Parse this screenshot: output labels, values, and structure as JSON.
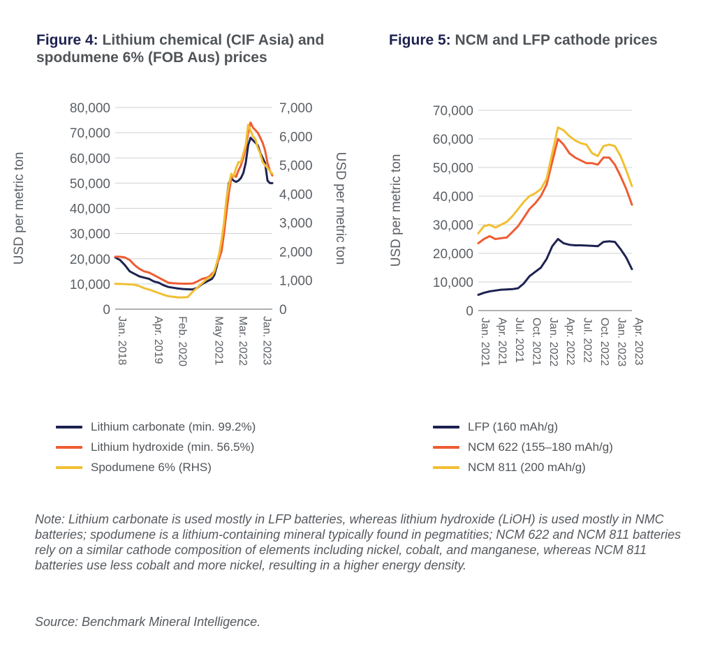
{
  "figure4": {
    "title_num": "Figure 4:",
    "title_text": "Lithium chemical (CIF Asia) and spodumene 6% (FOB Aus) prices"
  },
  "figure5": {
    "title_num": "Figure 5:",
    "title_text": "NCM and LFP cathode prices"
  },
  "note": "Note: Lithium carbonate is used mostly in LFP batteries, whereas lithium hydroxide (LiOH) is used mostly in NMC batteries; spodumene is a lithium-containing mineral typically found in pegmatities; NCM 622 and NCM 811 batteries rely on a similar cathode composition of elements including nickel, cobalt, and manganese, whereas NCM 811 batteries use less cobalt and more nickel, resulting in a higher energy density.",
  "source": "Source: Benchmark Mineral Intelligence.",
  "chart_data": [
    {
      "type": "line",
      "title": "Lithium chemical (CIF Asia) and spodumene 6% (FOB Aus) prices",
      "ylabel": "USD per metric ton",
      "y2label": "USD per metric ton",
      "ylim": [
        0,
        80000
      ],
      "y2lim": [
        0,
        7000
      ],
      "yticks": [
        0,
        10000,
        20000,
        30000,
        40000,
        50000,
        60000,
        70000,
        80000
      ],
      "y2ticks": [
        0,
        1000,
        2000,
        3000,
        4000,
        5000,
        6000,
        7000
      ],
      "ytick_labels": [
        "0",
        "10,000",
        "20,000",
        "30,000",
        "40,000",
        "50,000",
        "60,000",
        "70,000",
        "80,000"
      ],
      "y2tick_labels": [
        "0",
        "1,000",
        "2,000",
        "3,000",
        "4,000",
        "5,000",
        "6,000",
        "7,000"
      ],
      "xlim": [
        0,
        65
      ],
      "x_ticks": [
        0,
        15,
        25,
        40,
        50,
        60
      ],
      "x_tick_labels": [
        "Jan. 2018",
        "Apr. 2019",
        "Feb. 2020",
        "May 2021",
        "Mar. 2022",
        "Jan. 2023"
      ],
      "grid": true,
      "legend": "bottom",
      "series": [
        {
          "name": "Lithium carbonate (min. 99.2%)",
          "color": "#1d2250",
          "axis": "left",
          "x": [
            0,
            2,
            4,
            6,
            8,
            10,
            12,
            14,
            16,
            18,
            20,
            22,
            24,
            26,
            28,
            30,
            32,
            34,
            36,
            38,
            39,
            40,
            41,
            42,
            43,
            44,
            45,
            46,
            47,
            48,
            49,
            50,
            51,
            52,
            53,
            54,
            55,
            56,
            57,
            58,
            59,
            60,
            61,
            62,
            63,
            64,
            65
          ],
          "y": [
            20500,
            19500,
            17500,
            15000,
            14000,
            13000,
            12500,
            12000,
            11000,
            10500,
            9500,
            8800,
            8500,
            8200,
            8000,
            7900,
            7800,
            8500,
            10000,
            11000,
            11500,
            12000,
            13500,
            17000,
            21000,
            25000,
            33000,
            43000,
            50000,
            52000,
            51000,
            50500,
            51000,
            52000,
            54000,
            58000,
            65000,
            68000,
            67000,
            66000,
            65000,
            62000,
            60000,
            58000,
            51000,
            50000,
            50000
          ]
        },
        {
          "name": "Lithium hydroxide (min. 56.5%)",
          "color": "#ef5c33",
          "axis": "left",
          "x": [
            0,
            2,
            4,
            6,
            8,
            10,
            12,
            14,
            16,
            18,
            20,
            22,
            24,
            26,
            28,
            30,
            32,
            34,
            36,
            38,
            39,
            40,
            41,
            42,
            43,
            44,
            45,
            46,
            47,
            48,
            49,
            50,
            51,
            52,
            53,
            54,
            55,
            56,
            57,
            58,
            59,
            60,
            61,
            62,
            63,
            64,
            65
          ],
          "y": [
            20800,
            20800,
            20500,
            19500,
            17500,
            16000,
            15000,
            14500,
            13500,
            12500,
            11500,
            10500,
            10300,
            10200,
            10100,
            10100,
            10200,
            11000,
            12000,
            12500,
            13000,
            14000,
            15000,
            18000,
            20000,
            23000,
            30000,
            38000,
            46000,
            52000,
            53000,
            52500,
            55000,
            57000,
            60000,
            64000,
            70000,
            74000,
            72000,
            71000,
            70000,
            68000,
            66000,
            63000,
            58000,
            55000,
            53000
          ]
        },
        {
          "name": "Spodumene 6% (RHS)",
          "color": "#f2bf32",
          "axis": "right",
          "x": [
            0,
            2,
            4,
            6,
            8,
            10,
            12,
            14,
            16,
            18,
            20,
            22,
            24,
            26,
            28,
            30,
            32,
            34,
            36,
            38,
            39,
            40,
            41,
            42,
            43,
            44,
            45,
            46,
            47,
            48,
            49,
            50,
            51,
            52,
            53,
            54,
            55,
            56,
            57,
            58,
            59,
            60,
            61,
            62,
            63,
            64,
            65
          ],
          "y": [
            880,
            880,
            870,
            860,
            850,
            800,
            730,
            680,
            620,
            560,
            500,
            450,
            430,
            410,
            410,
            420,
            600,
            750,
            900,
            1050,
            1100,
            1150,
            1300,
            1600,
            1900,
            2400,
            3000,
            3800,
            4300,
            4700,
            4600,
            4900,
            5100,
            5100,
            5400,
            5700,
            6400,
            6200,
            6000,
            5900,
            5600,
            5400,
            5100,
            5000,
            4900,
            4800,
            4700
          ]
        }
      ]
    },
    {
      "type": "line",
      "title": "NCM and LFP cathode prices",
      "ylabel": "USD per metric ton",
      "ylim": [
        0,
        70000
      ],
      "yticks": [
        0,
        10000,
        20000,
        30000,
        40000,
        50000,
        60000,
        70000
      ],
      "ytick_labels": [
        "0",
        "10,000",
        "20,000",
        "30,000",
        "40,000",
        "50,000",
        "60,000",
        "70,000"
      ],
      "categories": [
        "Jan. 2021",
        "Apr. 2021",
        "Jul. 2021",
        "Oct. 2021",
        "Jan. 2022",
        "Apr. 2022",
        "Jul. 2022",
        "Oct. 2022",
        "Jan. 2023",
        "Apr. 2023"
      ],
      "xlim": [
        0,
        27
      ],
      "x_ticks": [
        0,
        3,
        6,
        9,
        12,
        15,
        18,
        21,
        24,
        27
      ],
      "grid": true,
      "legend": "bottom",
      "series": [
        {
          "name": "LFP (160 mAh/g)",
          "color": "#1d2250",
          "x": [
            0,
            1,
            2,
            3,
            4,
            5,
            6,
            7,
            8,
            9,
            10,
            11,
            12,
            13,
            14,
            15,
            16,
            17,
            18,
            19,
            20,
            21,
            22,
            23,
            24,
            25,
            26,
            27
          ],
          "y": [
            5500,
            6200,
            6700,
            7000,
            7300,
            7400,
            7500,
            7800,
            9500,
            12000,
            13500,
            15000,
            18000,
            22500,
            25000,
            23500,
            23000,
            22800,
            22800,
            22700,
            22600,
            22500,
            24000,
            24200,
            24000,
            21500,
            18500,
            14500
          ]
        },
        {
          "name": "NCM 622 (155–180 mAh/g)",
          "color": "#ef5c33",
          "x": [
            0,
            1,
            2,
            3,
            4,
            5,
            6,
            7,
            8,
            9,
            10,
            11,
            12,
            13,
            14,
            15,
            16,
            17,
            18,
            19,
            20,
            21,
            22,
            23,
            24,
            25,
            26,
            27
          ],
          "y": [
            23500,
            25000,
            26000,
            25000,
            25300,
            25500,
            27500,
            29500,
            32500,
            35500,
            37500,
            40000,
            44000,
            52000,
            60000,
            58000,
            55000,
            53500,
            52500,
            51500,
            51500,
            51000,
            53500,
            53500,
            51000,
            47000,
            42500,
            37000
          ]
        },
        {
          "name": "NCM 811 (200 mAh/g)",
          "color": "#f2bf32",
          "x": [
            0,
            1,
            2,
            3,
            4,
            5,
            6,
            7,
            8,
            9,
            10,
            11,
            12,
            13,
            14,
            15,
            16,
            17,
            18,
            19,
            20,
            21,
            22,
            23,
            24,
            25,
            26,
            27
          ],
          "y": [
            27000,
            29500,
            30000,
            29000,
            30000,
            31000,
            33000,
            35500,
            38000,
            40000,
            41000,
            42500,
            46000,
            55000,
            64000,
            63000,
            61000,
            59500,
            58500,
            58000,
            55000,
            54000,
            57500,
            58000,
            57500,
            54000,
            49000,
            43500
          ]
        }
      ]
    }
  ]
}
